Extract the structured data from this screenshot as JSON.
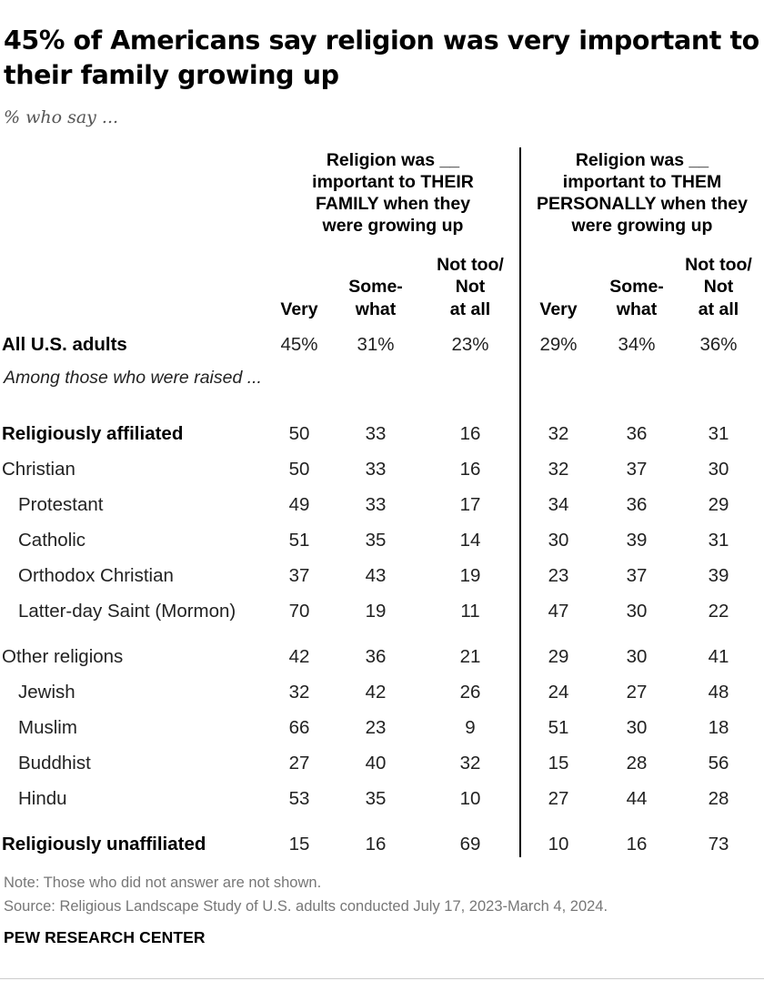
{
  "chart_data": {
    "type": "table",
    "title": "45% of Americans say religion was very important to their family growing up",
    "subtitle": "% who say ...",
    "column_groups": [
      {
        "label": "Religion was __\nimportant to THEIR\nFAMILY when they\nwere growing up",
        "columns": [
          "Very",
          "Some-\nwhat",
          "Not too/\nNot\nat all"
        ]
      },
      {
        "label": "Religion was __\nimportant to THEM\nPERSONALLY when they\nwere growing up",
        "columns": [
          "Very",
          "Some-\nwhat",
          "Not too/\nNot\nat all"
        ]
      }
    ],
    "intro_text": "Among those who were raised ...",
    "rows": [
      {
        "label": "All U.S. adults",
        "values": [
          "45%",
          "31%",
          "23%",
          "29%",
          "34%",
          "36%"
        ],
        "bold": true,
        "indent": false
      },
      {
        "label": "Religiously affiliated",
        "values": [
          "50",
          "33",
          "16",
          "32",
          "36",
          "31"
        ],
        "bold": true,
        "indent": false
      },
      {
        "label": "Christian",
        "values": [
          "50",
          "33",
          "16",
          "32",
          "37",
          "30"
        ],
        "bold": false,
        "indent": false
      },
      {
        "label": "Protestant",
        "values": [
          "49",
          "33",
          "17",
          "34",
          "36",
          "29"
        ],
        "bold": false,
        "indent": true
      },
      {
        "label": "Catholic",
        "values": [
          "51",
          "35",
          "14",
          "30",
          "39",
          "31"
        ],
        "bold": false,
        "indent": true
      },
      {
        "label": "Orthodox Christian",
        "values": [
          "37",
          "43",
          "19",
          "23",
          "37",
          "39"
        ],
        "bold": false,
        "indent": true
      },
      {
        "label": "Latter-day Saint (Mormon)",
        "values": [
          "70",
          "19",
          "11",
          "47",
          "30",
          "22"
        ],
        "bold": false,
        "indent": true
      },
      {
        "label": "Other religions",
        "values": [
          "42",
          "36",
          "21",
          "29",
          "30",
          "41"
        ],
        "bold": false,
        "indent": false
      },
      {
        "label": "Jewish",
        "values": [
          "32",
          "42",
          "26",
          "24",
          "27",
          "48"
        ],
        "bold": false,
        "indent": true
      },
      {
        "label": "Muslim",
        "values": [
          "66",
          "23",
          "9",
          "51",
          "30",
          "18"
        ],
        "bold": false,
        "indent": true
      },
      {
        "label": "Buddhist",
        "values": [
          "27",
          "40",
          "32",
          "15",
          "28",
          "56"
        ],
        "bold": false,
        "indent": true
      },
      {
        "label": "Hindu",
        "values": [
          "53",
          "35",
          "10",
          "27",
          "44",
          "28"
        ],
        "bold": false,
        "indent": true
      },
      {
        "label": "Religiously unaffiliated",
        "values": [
          "15",
          "16",
          "69",
          "10",
          "16",
          "73"
        ],
        "bold": true,
        "indent": false
      }
    ],
    "note": "Note: Those who did not answer are not shown.",
    "source": "Source: Religious Landscape Study of U.S. adults conducted July 17, 2023-March 4, 2024.",
    "brand": "PEW RESEARCH CENTER"
  }
}
